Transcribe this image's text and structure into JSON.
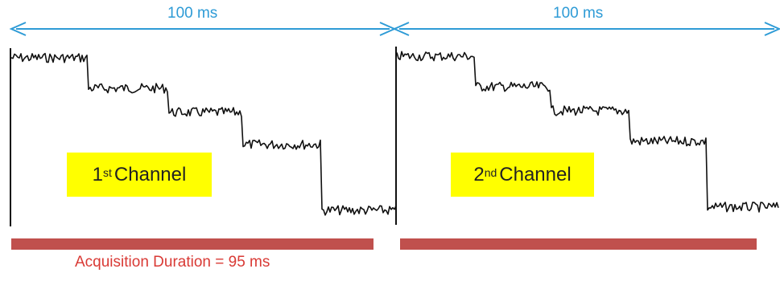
{
  "arrows": [
    {
      "label": "100 ms"
    },
    {
      "label": "100 ms"
    }
  ],
  "channels": [
    {
      "number": "1",
      "suffix": "st",
      "text": "Channel"
    },
    {
      "number": "2",
      "suffix": "nd",
      "text": "Channel"
    }
  ],
  "acquisition_label": "Acquisition Duration = 95 ms",
  "colors": {
    "arrow": "#2e9bd6",
    "trace": "#111111",
    "bar": "#c0504d",
    "highlight": "#ffff00",
    "acquisition_text": "#d93a35"
  }
}
